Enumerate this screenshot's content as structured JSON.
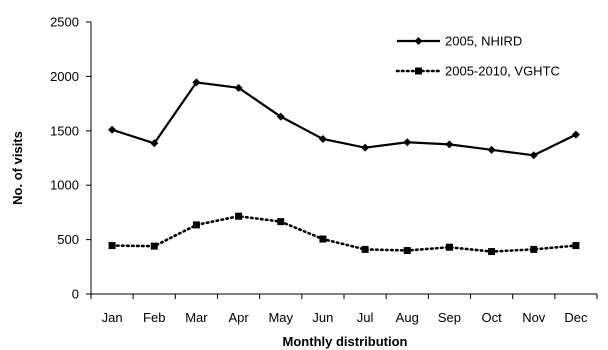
{
  "chart_data": {
    "type": "line",
    "categories": [
      "Jan",
      "Feb",
      "Mar",
      "Apr",
      "May",
      "Jun",
      "Jul",
      "Aug",
      "Sep",
      "Oct",
      "Nov",
      "Dec"
    ],
    "xlabel": "Monthly distribution",
    "ylabel": "No. of visits",
    "ylim": [
      0,
      2500
    ],
    "yticks": [
      0,
      500,
      1000,
      1500,
      2000,
      2500
    ],
    "grid": false,
    "legend_position": "top-right",
    "series": [
      {
        "name": "2005, NHIRD",
        "line_style": "solid",
        "marker": "diamond",
        "color": "#000000",
        "values": [
          1510,
          1385,
          1945,
          1895,
          1630,
          1425,
          1345,
          1395,
          1375,
          1325,
          1275,
          1465
        ]
      },
      {
        "name": "2005-2010, VGHTC",
        "line_style": "dotted",
        "marker": "square",
        "color": "#000000",
        "values": [
          445,
          440,
          635,
          715,
          665,
          505,
          410,
          400,
          430,
          390,
          410,
          445
        ]
      }
    ]
  }
}
